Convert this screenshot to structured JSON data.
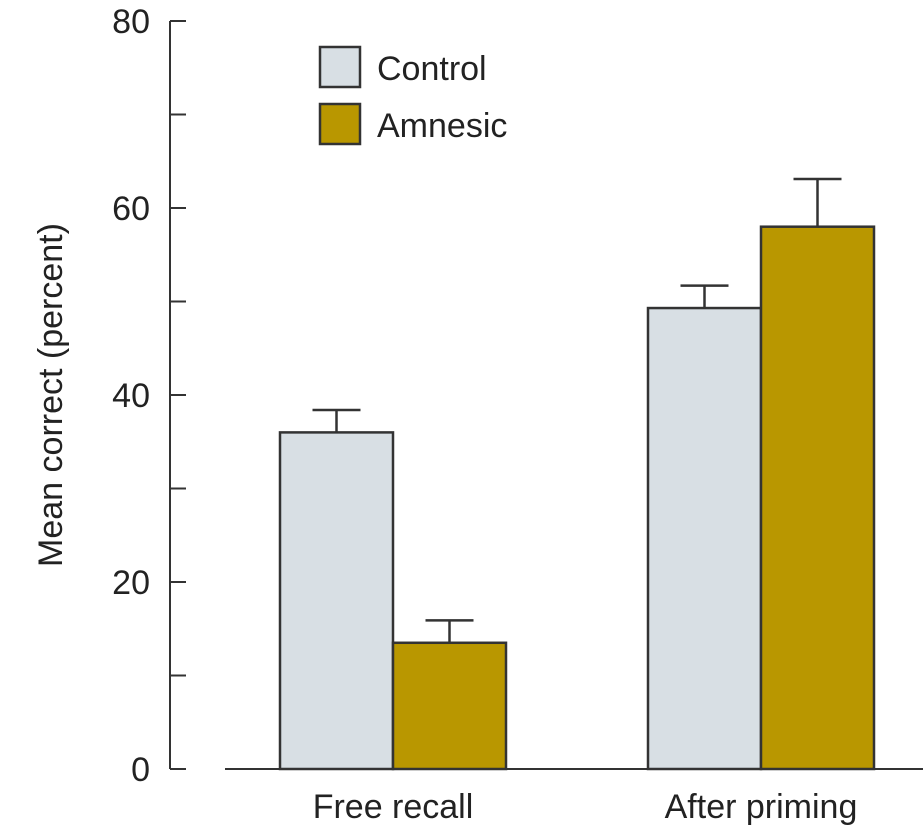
{
  "chart_data": {
    "type": "bar",
    "categories": [
      "Free recall",
      "After priming"
    ],
    "series": [
      {
        "name": "Control",
        "values": [
          36,
          49.3
        ],
        "errors": [
          2.4,
          2.4
        ],
        "color": "#d8dfe4"
      },
      {
        "name": "Amnesic",
        "values": [
          13.5,
          58
        ],
        "errors": [
          2.4,
          5.1
        ],
        "color": "#b99700"
      }
    ],
    "ylabel": "Mean correct  (percent)",
    "ylim": [
      0,
      80
    ],
    "yticks": [
      0,
      20,
      40,
      60,
      80
    ],
    "minor_ticks": [
      10,
      30,
      50,
      70
    ],
    "legend_position": "top-left",
    "grid": false,
    "error_bars": true
  }
}
